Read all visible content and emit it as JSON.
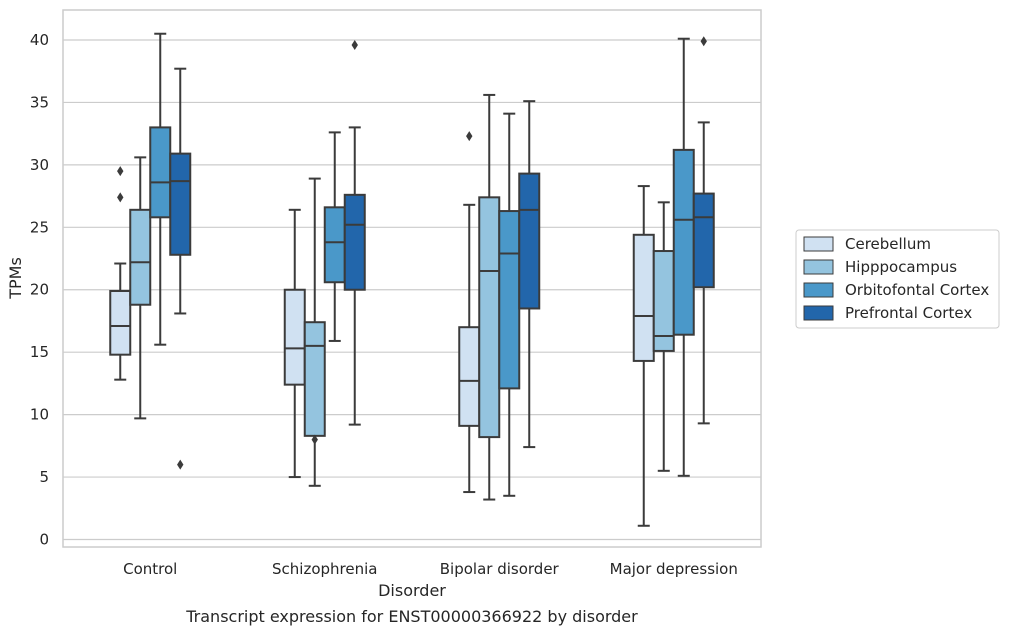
{
  "chart_data": {
    "type": "box",
    "caption": "Transcript expression for ENST00000366922 by disorder",
    "xlabel": "Disorder",
    "ylabel": "TPMs",
    "ylim": [
      -0.6,
      42.4
    ],
    "yticks": [
      0,
      5,
      10,
      15,
      20,
      25,
      30,
      35,
      40
    ],
    "grid": "horizontal",
    "legend_position": "right",
    "categories": [
      "Control",
      "Schizophrenia",
      "Bipolar disorder",
      "Major depression"
    ],
    "series": [
      {
        "name": "Cerebellum",
        "color": "#d0e1f2",
        "boxes": [
          {
            "whislo": 12.8,
            "q1": 14.8,
            "med": 17.1,
            "q3": 19.9,
            "whishi": 22.1,
            "fliers": [
              27.4,
              29.5
            ]
          },
          {
            "whislo": 5.0,
            "q1": 12.4,
            "med": 15.3,
            "q3": 20.0,
            "whishi": 26.4,
            "fliers": []
          },
          {
            "whislo": 3.8,
            "q1": 9.1,
            "med": 12.7,
            "q3": 17.0,
            "whishi": 26.8,
            "fliers": [
              32.3
            ]
          },
          {
            "whislo": 1.1,
            "q1": 14.3,
            "med": 17.9,
            "q3": 24.4,
            "whishi": 28.3,
            "fliers": []
          }
        ]
      },
      {
        "name": "Hipppocampus",
        "color": "#94c4df",
        "boxes": [
          {
            "whislo": 9.7,
            "q1": 18.8,
            "med": 22.2,
            "q3": 26.4,
            "whishi": 30.6,
            "fliers": []
          },
          {
            "whislo": 4.3,
            "q1": 8.3,
            "med": 15.5,
            "q3": 17.4,
            "whishi": 28.9,
            "fliers": [
              8.0
            ]
          },
          {
            "whislo": 3.2,
            "q1": 8.2,
            "med": 21.5,
            "q3": 27.4,
            "whishi": 35.6,
            "fliers": []
          },
          {
            "whislo": 5.5,
            "q1": 15.1,
            "med": 16.3,
            "q3": 23.1,
            "whishi": 27.0,
            "fliers": []
          }
        ]
      },
      {
        "name": "Orbitofontal Cortex",
        "color": "#4a98c9",
        "boxes": [
          {
            "whislo": 15.6,
            "q1": 25.8,
            "med": 28.6,
            "q3": 33.0,
            "whishi": 40.5,
            "fliers": []
          },
          {
            "whislo": 15.9,
            "q1": 20.6,
            "med": 23.8,
            "q3": 26.6,
            "whishi": 32.6,
            "fliers": []
          },
          {
            "whislo": 3.5,
            "q1": 12.1,
            "med": 22.9,
            "q3": 26.3,
            "whishi": 34.1,
            "fliers": []
          },
          {
            "whislo": 5.1,
            "q1": 16.4,
            "med": 25.6,
            "q3": 31.2,
            "whishi": 40.1,
            "fliers": []
          }
        ]
      },
      {
        "name": "Prefrontal Cortex",
        "color": "#2266ab",
        "boxes": [
          {
            "whislo": 18.1,
            "q1": 22.8,
            "med": 28.7,
            "q3": 30.9,
            "whishi": 37.7,
            "fliers": [
              6.0
            ]
          },
          {
            "whislo": 9.2,
            "q1": 20.0,
            "med": 25.2,
            "q3": 27.6,
            "whishi": 33.0,
            "fliers": [
              39.6
            ]
          },
          {
            "whislo": 7.4,
            "q1": 18.5,
            "med": 26.4,
            "q3": 29.3,
            "whishi": 35.1,
            "fliers": []
          },
          {
            "whislo": 9.3,
            "q1": 20.2,
            "med": 25.8,
            "q3": 27.7,
            "whishi": 33.4,
            "fliers": [
              39.9
            ]
          }
        ]
      }
    ]
  }
}
